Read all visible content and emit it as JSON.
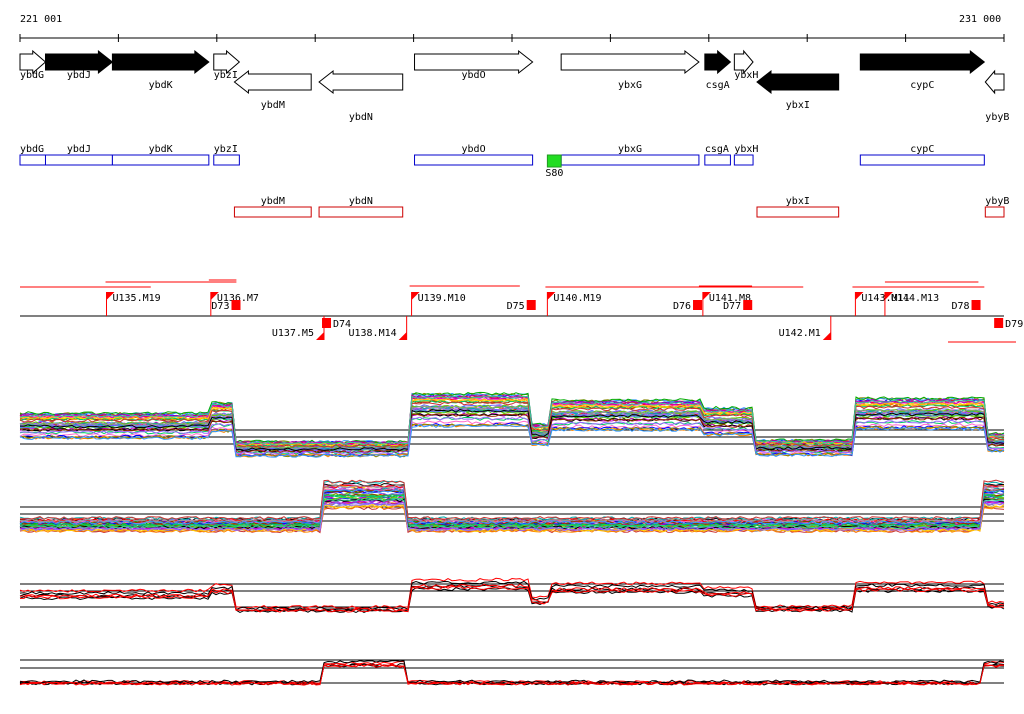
{
  "coords": {
    "start": "221 001",
    "end": "231 000",
    "start_bp": 221001,
    "end_bp": 231000
  },
  "genes": [
    {
      "name": "ybdG",
      "start": 221001,
      "end": 221260,
      "strand": "+",
      "fill": "white",
      "label_row": 0
    },
    {
      "name": "ybdJ",
      "start": 221260,
      "end": 221940,
      "strand": "+",
      "fill": "black",
      "label_row": 0
    },
    {
      "name": "ybdK",
      "start": 221940,
      "end": 222920,
      "strand": "+",
      "fill": "black",
      "label_row": 1
    },
    {
      "name": "ybzI",
      "start": 222970,
      "end": 223230,
      "strand": "+",
      "fill": "white",
      "label_row": 0
    },
    {
      "name": "ybdM",
      "start": 223180,
      "end": 223960,
      "strand": "-",
      "fill": "white",
      "label_row": 2
    },
    {
      "name": "ybdN",
      "start": 224040,
      "end": 224890,
      "strand": "-",
      "fill": "white",
      "label_row": 3
    },
    {
      "name": "ybdO",
      "start": 225010,
      "end": 226210,
      "strand": "+",
      "fill": "white",
      "label_row": 0
    },
    {
      "name": "ybxG",
      "start": 226500,
      "end": 227900,
      "strand": "+",
      "fill": "white",
      "label_row": 1
    },
    {
      "name": "csgA",
      "start": 227960,
      "end": 228220,
      "strand": "+",
      "fill": "black",
      "label_row": 2
    },
    {
      "name": "ybxH",
      "start": 228260,
      "end": 228450,
      "strand": "+",
      "fill": "white",
      "label_row": 0
    },
    {
      "name": "ybxI",
      "start": 228490,
      "end": 229320,
      "strand": "-",
      "fill": "black",
      "label_row": 2
    },
    {
      "name": "cypC",
      "start": 229540,
      "end": 230800,
      "strand": "+",
      "fill": "black",
      "label_row": 1
    },
    {
      "name": "ybyB",
      "start": 230810,
      "end": 231000,
      "strand": "-",
      "fill": "white",
      "label_row": 0
    }
  ],
  "feature_boxes_plus": [
    "ybdG",
    "ybdJ",
    "ybdK",
    "ybzI",
    "ybdO",
    "ybxG",
    "csgA",
    "ybxH",
    "cypC"
  ],
  "feature_boxes_minus": [
    "ybdM",
    "ybdN",
    "ybxI",
    "ybyB"
  ],
  "marker": {
    "label": "S80",
    "start": 226360,
    "end": 226500,
    "color": "#22dd22"
  },
  "segments_upper": [
    {
      "label": "U135.M19",
      "pos": 221880
    },
    {
      "label": "U136.M7",
      "pos": 222940
    },
    {
      "label": "U139.M10",
      "pos": 224980
    },
    {
      "label": "U140.M19",
      "pos": 226360
    },
    {
      "label": "U141.M8",
      "pos": 227940
    },
    {
      "label": "U143.M11",
      "pos": 229490
    },
    {
      "label": "U144.M13",
      "pos": 229790
    }
  ],
  "segments_lower": [
    {
      "label": "U137.M5",
      "pos": 224090
    },
    {
      "label": "U138.M14",
      "pos": 224930
    },
    {
      "label": "U142.M1",
      "pos": 229240
    }
  ],
  "downs": [
    {
      "label": "D73",
      "pos": 223150,
      "side": "left"
    },
    {
      "label": "D74",
      "pos": 224070,
      "side": "right"
    },
    {
      "label": "D75",
      "pos": 226150,
      "side": "left"
    },
    {
      "label": "D76",
      "pos": 227840,
      "side": "left"
    },
    {
      "label": "D77",
      "pos": 228350,
      "side": "left"
    },
    {
      "label": "D78",
      "pos": 230670,
      "side": "left"
    },
    {
      "label": "D79",
      "pos": 230900,
      "side": "right"
    }
  ],
  "red_spans": [
    {
      "start": 221001,
      "end": 222330,
      "y": "top"
    },
    {
      "start": 221870,
      "end": 223200,
      "y": "mid"
    },
    {
      "start": 222920,
      "end": 223200,
      "y": "high"
    },
    {
      "start": 224960,
      "end": 226080,
      "y": "low"
    },
    {
      "start": 226340,
      "end": 228960,
      "y": "top"
    },
    {
      "start": 227900,
      "end": 228440,
      "y": "low"
    },
    {
      "start": 229460,
      "end": 230800,
      "y": "top"
    },
    {
      "start": 229790,
      "end": 230740,
      "y": "mid"
    }
  ],
  "tracks": {
    "colors": [
      "#ff0000",
      "#00aa00",
      "#0000ff",
      "#ff8800",
      "#aa00aa",
      "#00aaaa",
      "#888800",
      "#ff66cc",
      "#66cc00",
      "#6666ff",
      "#993300",
      "#00cc66",
      "#cc00cc",
      "#3399ff",
      "#999999",
      "#ffcc00",
      "#000000",
      "#cc3333",
      "#33cc99",
      "#9966ff"
    ],
    "track1_levels": [
      {
        "from": 221001,
        "to": 222950,
        "level": 0.62
      },
      {
        "from": 222950,
        "to": 223190,
        "level": 0.78
      },
      {
        "from": 223190,
        "to": 224980,
        "level": 0.18
      },
      {
        "from": 224980,
        "to": 226200,
        "level": 0.92
      },
      {
        "from": 226200,
        "to": 226380,
        "level": 0.45
      },
      {
        "from": 226380,
        "to": 227920,
        "level": 0.82
      },
      {
        "from": 227920,
        "to": 228440,
        "level": 0.7
      },
      {
        "from": 228440,
        "to": 229460,
        "level": 0.2
      },
      {
        "from": 229460,
        "to": 230800,
        "level": 0.85
      },
      {
        "from": 230800,
        "to": 231000,
        "level": 0.3
      }
    ],
    "track2_levels": [
      {
        "from": 221001,
        "to": 224060,
        "level": 0.22
      },
      {
        "from": 224060,
        "to": 224920,
        "level": 0.85
      },
      {
        "from": 224920,
        "to": 230780,
        "level": 0.22
      },
      {
        "from": 230780,
        "to": 231000,
        "level": 0.85
      }
    ]
  }
}
